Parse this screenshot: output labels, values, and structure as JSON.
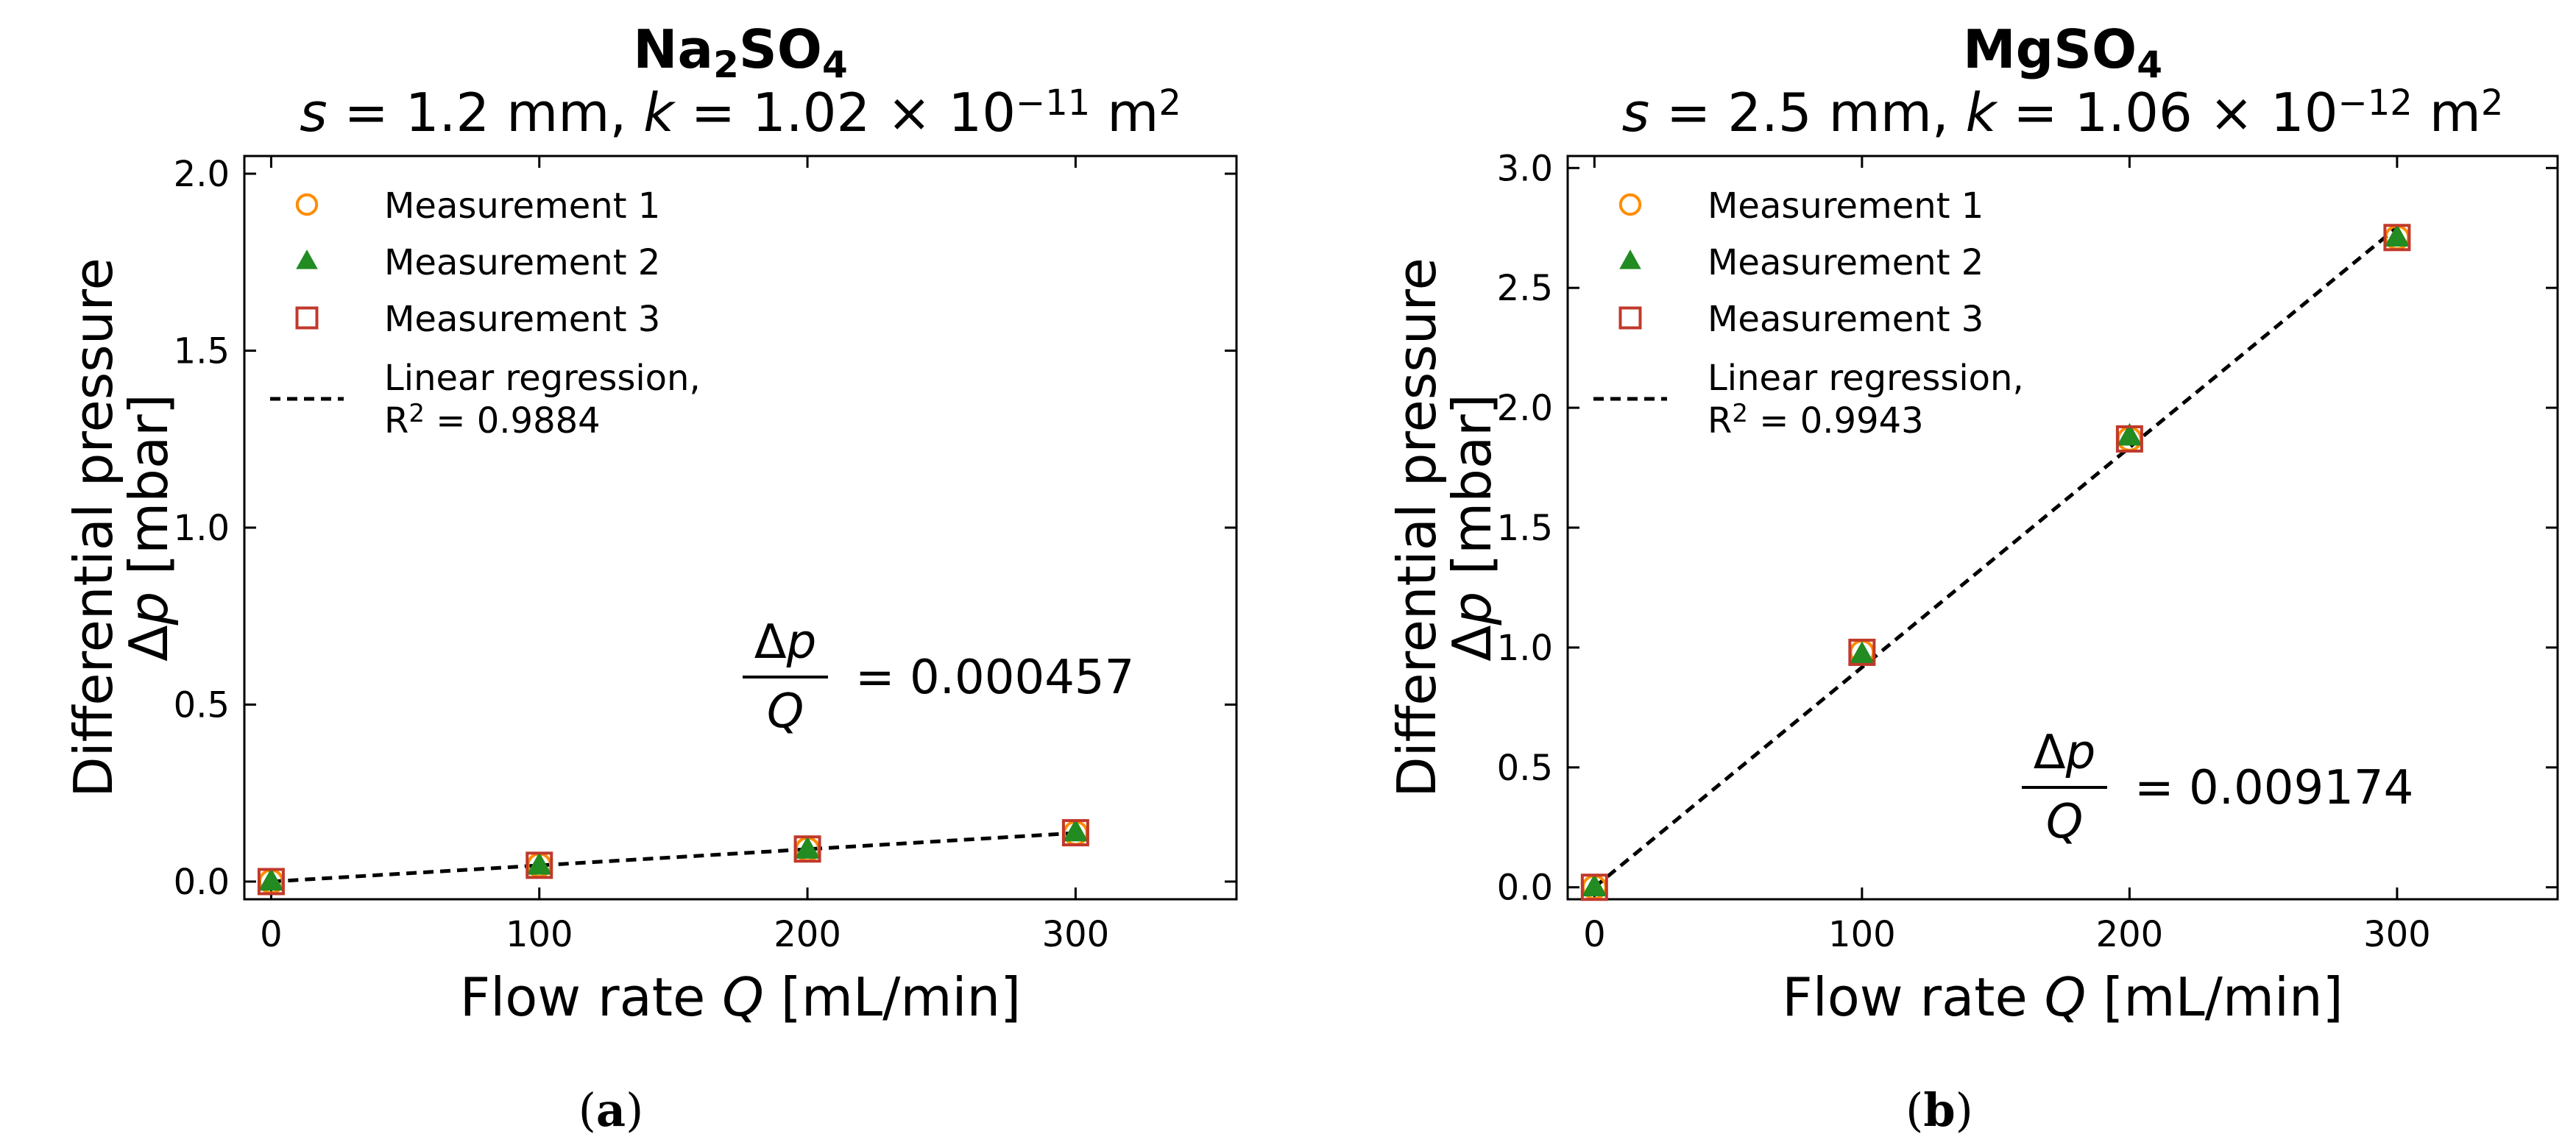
{
  "figure": {
    "captions": [
      "(a)",
      "(b)"
    ],
    "caption_letters": [
      "a",
      "b"
    ]
  },
  "chart_data": [
    {
      "type": "scatter",
      "panel": "a",
      "title": "Na₂SO₄",
      "title_base": "Na",
      "title_sub1": "2",
      "title_mid": "SO",
      "title_sub2": "4",
      "subtitle_prefix": "s = 1.2 mm, ",
      "subtitle_k": "k = 1.02 × 10",
      "subtitle_exp": "−11",
      "subtitle_unit": " m",
      "subtitle_unit_exp": "2",
      "subtitle_full": "s = 1.2 mm, k = 1.02 × 10⁻¹¹ m²",
      "xlabel": "Flow rate Q [mL/min]",
      "xlabel_prefix": "Flow rate ",
      "xlabel_var": "Q",
      "xlabel_suffix": " [mL/min]",
      "ylabel_line1": "Differential pressure",
      "ylabel_line2": "Δp [mbar]",
      "ylabel_delta": "Δ",
      "ylabel_var": "p",
      "ylabel_unit": " [mbar]",
      "xlim": [
        -10,
        360
      ],
      "ylim": [
        -0.05,
        2.05
      ],
      "xticks": [
        0,
        100,
        200,
        300
      ],
      "xtick_labels": [
        "0",
        "100",
        "200",
        "300"
      ],
      "yticks": [
        0.0,
        0.5,
        1.0,
        1.5,
        2.0
      ],
      "ytick_labels": [
        "0.0",
        "0.5",
        "1.0",
        "1.5",
        "2.0"
      ],
      "x": [
        0,
        100,
        200,
        300
      ],
      "series": [
        {
          "name": "Measurement 1",
          "marker": "circle",
          "color": "#ff8c00",
          "values": [
            0.0,
            0.046,
            0.091,
            0.137
          ]
        },
        {
          "name": "Measurement 2",
          "marker": "triangle",
          "color": "#228b22",
          "values": [
            0.0,
            0.045,
            0.09,
            0.139
          ]
        },
        {
          "name": "Measurement 3",
          "marker": "square",
          "color": "#c0392b",
          "values": [
            0.0,
            0.046,
            0.092,
            0.138
          ]
        }
      ],
      "regression": {
        "name": "Linear regression,",
        "r2_label": "R",
        "r2_exp": "2",
        "r2_value": " = 0.9884",
        "slope": 0.000457,
        "intercept": 0.0,
        "x_range": [
          0,
          300
        ]
      },
      "annotation": {
        "num": "Δp",
        "den": "Q",
        "value": "= 0.000457"
      },
      "legend_position": "top-left"
    },
    {
      "type": "scatter",
      "panel": "b",
      "title": "MgSO₄",
      "title_base": "MgSO",
      "title_sub1": "",
      "title_mid": "",
      "title_sub2": "4",
      "subtitle_prefix": "s = 2.5 mm, ",
      "subtitle_k": "k = 1.06 × 10",
      "subtitle_exp": "−12",
      "subtitle_unit": " m",
      "subtitle_unit_exp": "2",
      "subtitle_full": "s = 2.5 mm, k = 1.06 × 10⁻¹² m²",
      "xlabel": "Flow rate Q [mL/min]",
      "xlabel_prefix": "Flow rate ",
      "xlabel_var": "Q",
      "xlabel_suffix": " [mL/min]",
      "ylabel_line1": "Differential pressure",
      "ylabel_line2": "Δp [mbar]",
      "ylabel_delta": "Δ",
      "ylabel_var": "p",
      "ylabel_unit": " [mbar]",
      "xlim": [
        -10,
        360
      ],
      "ylim": [
        -0.05,
        3.05
      ],
      "xticks": [
        0,
        100,
        200,
        300
      ],
      "xtick_labels": [
        "0",
        "100",
        "200",
        "300"
      ],
      "yticks": [
        0.0,
        0.5,
        1.0,
        1.5,
        2.0,
        2.5,
        3.0
      ],
      "ytick_labels": [
        "0.0",
        "0.5",
        "1.0",
        "1.5",
        "2.0",
        "2.5",
        "3.0"
      ],
      "x": [
        0,
        100,
        200,
        300
      ],
      "series": [
        {
          "name": "Measurement 1",
          "marker": "circle",
          "color": "#ff8c00",
          "values": [
            0.0,
            0.98,
            1.87,
            2.71
          ]
        },
        {
          "name": "Measurement 2",
          "marker": "triangle",
          "color": "#228b22",
          "values": [
            0.0,
            0.97,
            1.88,
            2.71
          ]
        },
        {
          "name": "Measurement 3",
          "marker": "square",
          "color": "#c0392b",
          "values": [
            0.0,
            0.98,
            1.87,
            2.71
          ]
        }
      ],
      "regression": {
        "name": "Linear regression,",
        "r2_label": "R",
        "r2_exp": "2",
        "r2_value": " = 0.9943",
        "slope": 0.009174,
        "intercept": 0.0,
        "x_range": [
          0,
          300
        ]
      },
      "annotation": {
        "num": "Δp",
        "den": "Q",
        "value": "= 0.009174"
      },
      "legend_position": "top-left"
    }
  ]
}
